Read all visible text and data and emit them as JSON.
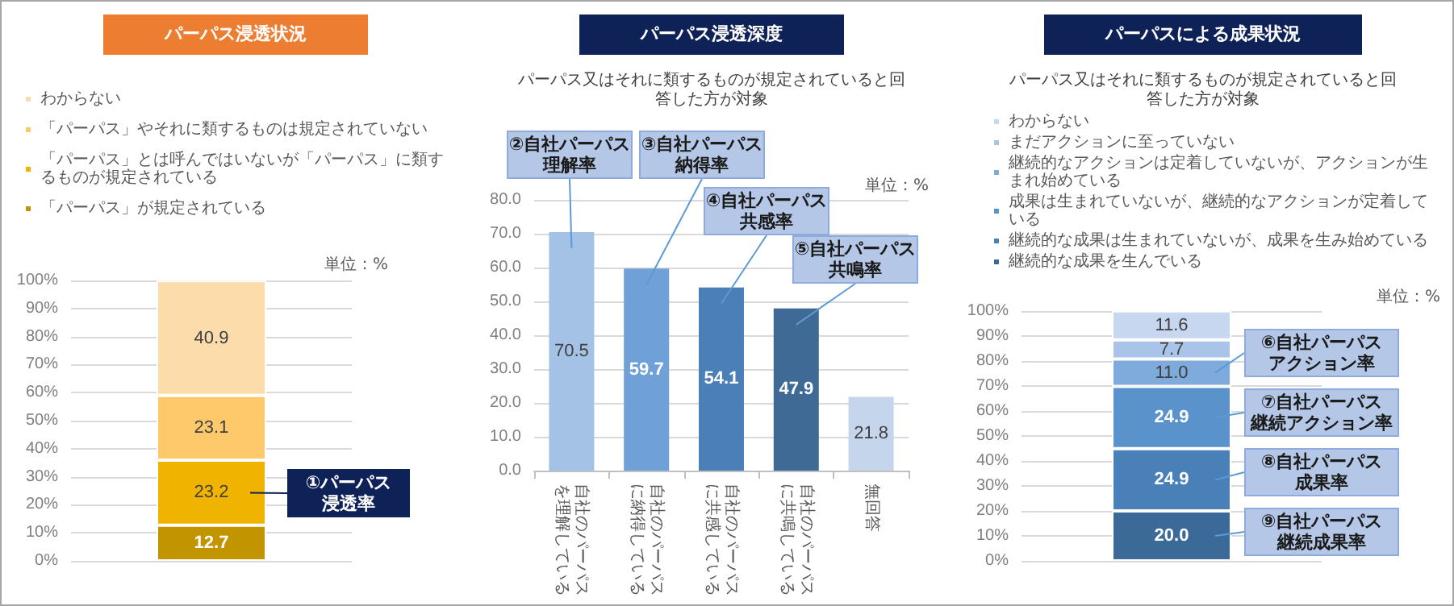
{
  "chart_data": [
    {
      "type": "bar",
      "title": "パーパス浸透状況",
      "categories": [
        null
      ],
      "stacked": true,
      "series": [
        {
          "name": "「パーパス」が規定されている",
          "color": "#c29400",
          "values": [
            12.7
          ]
        },
        {
          "name": "「パーパス」とは呼んではいないが「パーパス」に類するものが規定されている",
          "color": "#f0b400",
          "values": [
            23.2
          ]
        },
        {
          "name": "「パーパス」やそれに類するものは規定されていない",
          "color": "#fec96a",
          "values": [
            23.1
          ]
        },
        {
          "name": "わからない",
          "color": "#fddcab",
          "values": [
            40.9
          ]
        }
      ],
      "ylim": [
        0,
        100
      ],
      "yticks": [
        {
          "value": 0,
          "label": "0%"
        },
        {
          "value": 10,
          "label": "10%"
        },
        {
          "value": 20,
          "label": "20%"
        },
        {
          "value": 30,
          "label": "30%"
        },
        {
          "value": 40,
          "label": "40%"
        },
        {
          "value": 50,
          "label": "50%"
        },
        {
          "value": 60,
          "label": "60%"
        },
        {
          "value": 70,
          "label": "70%"
        },
        {
          "value": 80,
          "label": "80%"
        },
        {
          "value": 90,
          "label": "90%"
        },
        {
          "value": 100,
          "label": "100%"
        }
      ],
      "grid": "y",
      "legend": "top",
      "data_labels": true,
      "annotations": [
        "単位：%",
        "①パーパス浸透率"
      ]
    },
    {
      "type": "bar",
      "title": "パーパス浸透深度",
      "subtitle": "パーパス又はそれに類するものが規定されていると回答した方が対象",
      "categories": [
        "自社のパーパスを理解している",
        "自社のパーパスに納得している",
        "自社のパーパスに共感している",
        "自社のパーパスに共鳴している",
        "無回答"
      ],
      "values": [
        70.5,
        59.7,
        54.1,
        47.9,
        21.8
      ],
      "colors": [
        "#a4c2e6",
        "#6fa1d8",
        "#4a7fb8",
        "#3f6a96",
        "#c4d5ec"
      ],
      "ylim": [
        0,
        80
      ],
      "yticks": [
        {
          "value": 0,
          "label": "0.0"
        },
        {
          "value": 10,
          "label": "10.0"
        },
        {
          "value": 20,
          "label": "20.0"
        },
        {
          "value": 30,
          "label": "30.0"
        },
        {
          "value": 40,
          "label": "40.0"
        },
        {
          "value": 50,
          "label": "50.0"
        },
        {
          "value": 60,
          "label": "60.0"
        },
        {
          "value": 70,
          "label": "70.0"
        },
        {
          "value": 80,
          "label": "80.0"
        }
      ],
      "grid": "y",
      "data_labels": true,
      "annotations": [
        "単位：%",
        "②自社パーパス理解率",
        "③自社パーパス納得率",
        "④自社パーパス共感率",
        "⑤自社パーパス共鳴率"
      ]
    },
    {
      "type": "bar",
      "title": "パーパスによる成果状況",
      "subtitle": "パーパス又はそれに類するものが規定されていると回答した方が対象",
      "categories": [
        null
      ],
      "stacked": true,
      "series": [
        {
          "name": "継続的な成果を生んでいる",
          "color": "#3c6a98",
          "values": [
            20.0
          ],
          "value_labels": [
            "20.0"
          ]
        },
        {
          "name": "継続的な成果は生まれていないが、成果を生み始めている",
          "color": "#4a80b8",
          "values": [
            24.9
          ],
          "value_labels": [
            "24.9"
          ]
        },
        {
          "name": "成果は生まれていないが、継続的なアクションが定着している",
          "color": "#5a93cc",
          "values": [
            24.9
          ],
          "value_labels": [
            "24.9"
          ]
        },
        {
          "name": "継続的なアクションは定着していないが、アクションが生まれ始めている",
          "color": "#7eaadc",
          "values": [
            11.0
          ],
          "value_labels": [
            "11.0"
          ]
        },
        {
          "name": "まだアクションに至っていない",
          "color": "#a9c4e8",
          "values": [
            7.7
          ],
          "value_labels": [
            "7.7"
          ]
        },
        {
          "name": "わからない",
          "color": "#c7d7ef",
          "values": [
            11.6
          ],
          "value_labels": [
            "11.6"
          ]
        }
      ],
      "ylim": [
        0,
        100
      ],
      "yticks": [
        {
          "value": 0,
          "label": "0%"
        },
        {
          "value": 10,
          "label": "10%"
        },
        {
          "value": 20,
          "label": "20%"
        },
        {
          "value": 30,
          "label": "30%"
        },
        {
          "value": 40,
          "label": "40%"
        },
        {
          "value": 50,
          "label": "50%"
        },
        {
          "value": 60,
          "label": "60%"
        },
        {
          "value": 70,
          "label": "70%"
        },
        {
          "value": 80,
          "label": "80%"
        },
        {
          "value": 90,
          "label": "90%"
        },
        {
          "value": 100,
          "label": "100%"
        }
      ],
      "grid": "y",
      "legend": "top",
      "annotations": [
        "単位：%",
        "⑥自社パーパスアクション率",
        "⑦自社パーパス継続アクション率",
        "⑧自社パーパス成果率",
        "⑨自社パーパス継続成果率"
      ]
    }
  ]
}
